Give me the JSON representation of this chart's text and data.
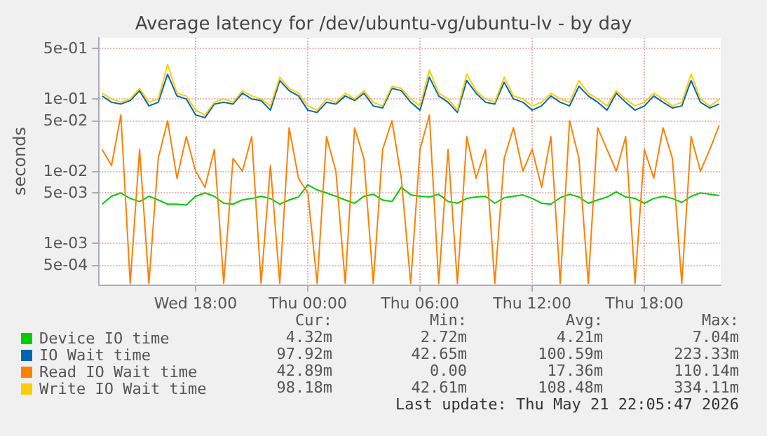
{
  "chart_data": {
    "type": "line",
    "title": "Average latency for /dev/ubuntu-vg/ubuntu-lv - by day",
    "ylabel": "seconds",
    "log": true,
    "grid": true,
    "legend": "bottom",
    "marker": "none",
    "line_style": "solid",
    "x": [
      "2026-05-20T13:00",
      "2026-05-20T13:30",
      "2026-05-20T14:00",
      "2026-05-20T14:30",
      "2026-05-20T15:00",
      "2026-05-20T15:30",
      "2026-05-20T16:00",
      "2026-05-20T16:30",
      "2026-05-20T17:00",
      "2026-05-20T17:30",
      "2026-05-20T18:00",
      "2026-05-20T18:30",
      "2026-05-20T19:00",
      "2026-05-20T19:30",
      "2026-05-20T20:00",
      "2026-05-20T20:30",
      "2026-05-20T21:00",
      "2026-05-20T21:30",
      "2026-05-20T22:00",
      "2026-05-20T22:30",
      "2026-05-20T23:00",
      "2026-05-20T23:30",
      "2026-05-21T00:00",
      "2026-05-21T00:30",
      "2026-05-21T01:00",
      "2026-05-21T01:30",
      "2026-05-21T02:00",
      "2026-05-21T02:30",
      "2026-05-21T03:00",
      "2026-05-21T03:30",
      "2026-05-21T04:00",
      "2026-05-21T04:30",
      "2026-05-21T05:00",
      "2026-05-21T05:30",
      "2026-05-21T06:00",
      "2026-05-21T06:30",
      "2026-05-21T07:00",
      "2026-05-21T07:30",
      "2026-05-21T08:00",
      "2026-05-21T08:30",
      "2026-05-21T09:00",
      "2026-05-21T09:30",
      "2026-05-21T10:00",
      "2026-05-21T10:30",
      "2026-05-21T11:00",
      "2026-05-21T11:30",
      "2026-05-21T12:00",
      "2026-05-21T12:30",
      "2026-05-21T13:00",
      "2026-05-21T13:30",
      "2026-05-21T14:00",
      "2026-05-21T14:30",
      "2026-05-21T15:00",
      "2026-05-21T15:30",
      "2026-05-21T16:00",
      "2026-05-21T16:30",
      "2026-05-21T17:00",
      "2026-05-21T17:30",
      "2026-05-21T18:00",
      "2026-05-21T18:30",
      "2026-05-21T19:00",
      "2026-05-21T19:30",
      "2026-05-21T20:00",
      "2026-05-21T20:30",
      "2026-05-21T21:00",
      "2026-05-21T21:30",
      "2026-05-21T22:00"
    ],
    "xlim": [
      "2026-05-20T12:50",
      "2026-05-21T22:05"
    ],
    "xticks": [
      {
        "value": "2026-05-20T18:00",
        "label": "Wed 18:00"
      },
      {
        "value": "2026-05-21T00:00",
        "label": "Thu 00:00"
      },
      {
        "value": "2026-05-21T06:00",
        "label": "Thu 06:00"
      },
      {
        "value": "2026-05-21T12:00",
        "label": "Thu 12:00"
      },
      {
        "value": "2026-05-21T18:00",
        "label": "Thu 18:00"
      }
    ],
    "ylim": [
      0.00027,
      0.7
    ],
    "yticks": [
      {
        "value": 0.0005,
        "label": "5e-04"
      },
      {
        "value": 0.001,
        "label": "1e-03"
      },
      {
        "value": 0.005,
        "label": "5e-03"
      },
      {
        "value": 0.01,
        "label": "1e-02"
      },
      {
        "value": 0.05,
        "label": "5e-02"
      },
      {
        "value": 0.1,
        "label": "1e-01"
      },
      {
        "value": 0.5,
        "label": "5e-01"
      }
    ],
    "series": [
      {
        "name": "Device IO time",
        "color": "#00cc00",
        "values": [
          0.0035,
          0.0045,
          0.005,
          0.0042,
          0.0038,
          0.0045,
          0.004,
          0.0035,
          0.0035,
          0.0034,
          0.0045,
          0.005,
          0.0045,
          0.0036,
          0.0035,
          0.004,
          0.0042,
          0.0045,
          0.0042,
          0.0035,
          0.004,
          0.0044,
          0.0065,
          0.0055,
          0.005,
          0.0045,
          0.004,
          0.0036,
          0.0045,
          0.0048,
          0.004,
          0.0038,
          0.006,
          0.0047,
          0.0045,
          0.0044,
          0.0048,
          0.0038,
          0.0036,
          0.0042,
          0.0044,
          0.0045,
          0.0036,
          0.0043,
          0.0045,
          0.0047,
          0.0042,
          0.0036,
          0.0035,
          0.0043,
          0.0048,
          0.0044,
          0.0036,
          0.004,
          0.0044,
          0.0052,
          0.0044,
          0.0042,
          0.0036,
          0.0042,
          0.0045,
          0.0042,
          0.0037,
          0.0045,
          0.005,
          0.0048,
          0.0046
        ]
      },
      {
        "name": "IO Wait time",
        "color": "#0066b3",
        "values": [
          0.11,
          0.09,
          0.085,
          0.095,
          0.13,
          0.08,
          0.09,
          0.22,
          0.11,
          0.1,
          0.06,
          0.055,
          0.085,
          0.09,
          0.085,
          0.12,
          0.1,
          0.095,
          0.07,
          0.18,
          0.13,
          0.11,
          0.07,
          0.065,
          0.09,
          0.085,
          0.11,
          0.095,
          0.12,
          0.08,
          0.075,
          0.14,
          0.13,
          0.09,
          0.07,
          0.2,
          0.11,
          0.09,
          0.065,
          0.18,
          0.12,
          0.09,
          0.085,
          0.17,
          0.1,
          0.09,
          0.07,
          0.08,
          0.11,
          0.09,
          0.08,
          0.15,
          0.11,
          0.09,
          0.07,
          0.12,
          0.09,
          0.07,
          0.08,
          0.11,
          0.09,
          0.075,
          0.08,
          0.18,
          0.09,
          0.075,
          0.085
        ]
      },
      {
        "name": "Read IO Wait time",
        "color": "#ff8000",
        "values": [
          0.02,
          0.012,
          0.06,
          0.00028,
          0.02,
          0.00028,
          0.015,
          0.05,
          0.008,
          0.03,
          0.01,
          0.006,
          0.02,
          0.00028,
          0.015,
          0.01,
          0.03,
          0.00028,
          0.012,
          0.00028,
          0.04,
          0.008,
          0.005,
          0.00028,
          0.03,
          0.01,
          0.00028,
          0.04,
          0.015,
          0.00028,
          0.02,
          0.05,
          0.008,
          0.00028,
          0.02,
          0.06,
          0.00028,
          0.02,
          0.00028,
          0.03,
          0.008,
          0.02,
          0.00028,
          0.015,
          0.04,
          0.01,
          0.02,
          0.006,
          0.03,
          0.00028,
          0.05,
          0.015,
          0.00028,
          0.04,
          0.02,
          0.01,
          0.03,
          0.00028,
          0.02,
          0.008,
          0.04,
          0.015,
          0.00028,
          0.03,
          0.01,
          0.02,
          0.043
        ]
      },
      {
        "name": "Write IO Wait time",
        "color": "#ffcc00",
        "values": [
          0.12,
          0.1,
          0.09,
          0.1,
          0.14,
          0.09,
          0.1,
          0.3,
          0.12,
          0.11,
          0.07,
          0.06,
          0.09,
          0.1,
          0.09,
          0.13,
          0.11,
          0.1,
          0.08,
          0.2,
          0.14,
          0.12,
          0.08,
          0.07,
          0.1,
          0.09,
          0.12,
          0.1,
          0.13,
          0.09,
          0.08,
          0.15,
          0.14,
          0.1,
          0.08,
          0.25,
          0.12,
          0.1,
          0.07,
          0.22,
          0.13,
          0.1,
          0.09,
          0.2,
          0.11,
          0.1,
          0.08,
          0.09,
          0.12,
          0.1,
          0.09,
          0.18,
          0.12,
          0.1,
          0.08,
          0.13,
          0.1,
          0.08,
          0.09,
          0.12,
          0.1,
          0.08,
          0.09,
          0.22,
          0.1,
          0.08,
          0.098
        ]
      }
    ],
    "annotations": [
      "Cur:",
      "Min:",
      "Avg:",
      "Max:",
      "4.32m",
      "2.72m",
      "4.21m",
      "7.04m",
      "97.92m",
      "42.65m",
      "100.59m",
      "223.33m",
      "42.89m",
      "0.00",
      "17.36m",
      "110.14m",
      "98.18m",
      "42.61m",
      "108.48m",
      "334.11m",
      "Last update: Thu May 21 22:05:47 2026"
    ]
  }
}
